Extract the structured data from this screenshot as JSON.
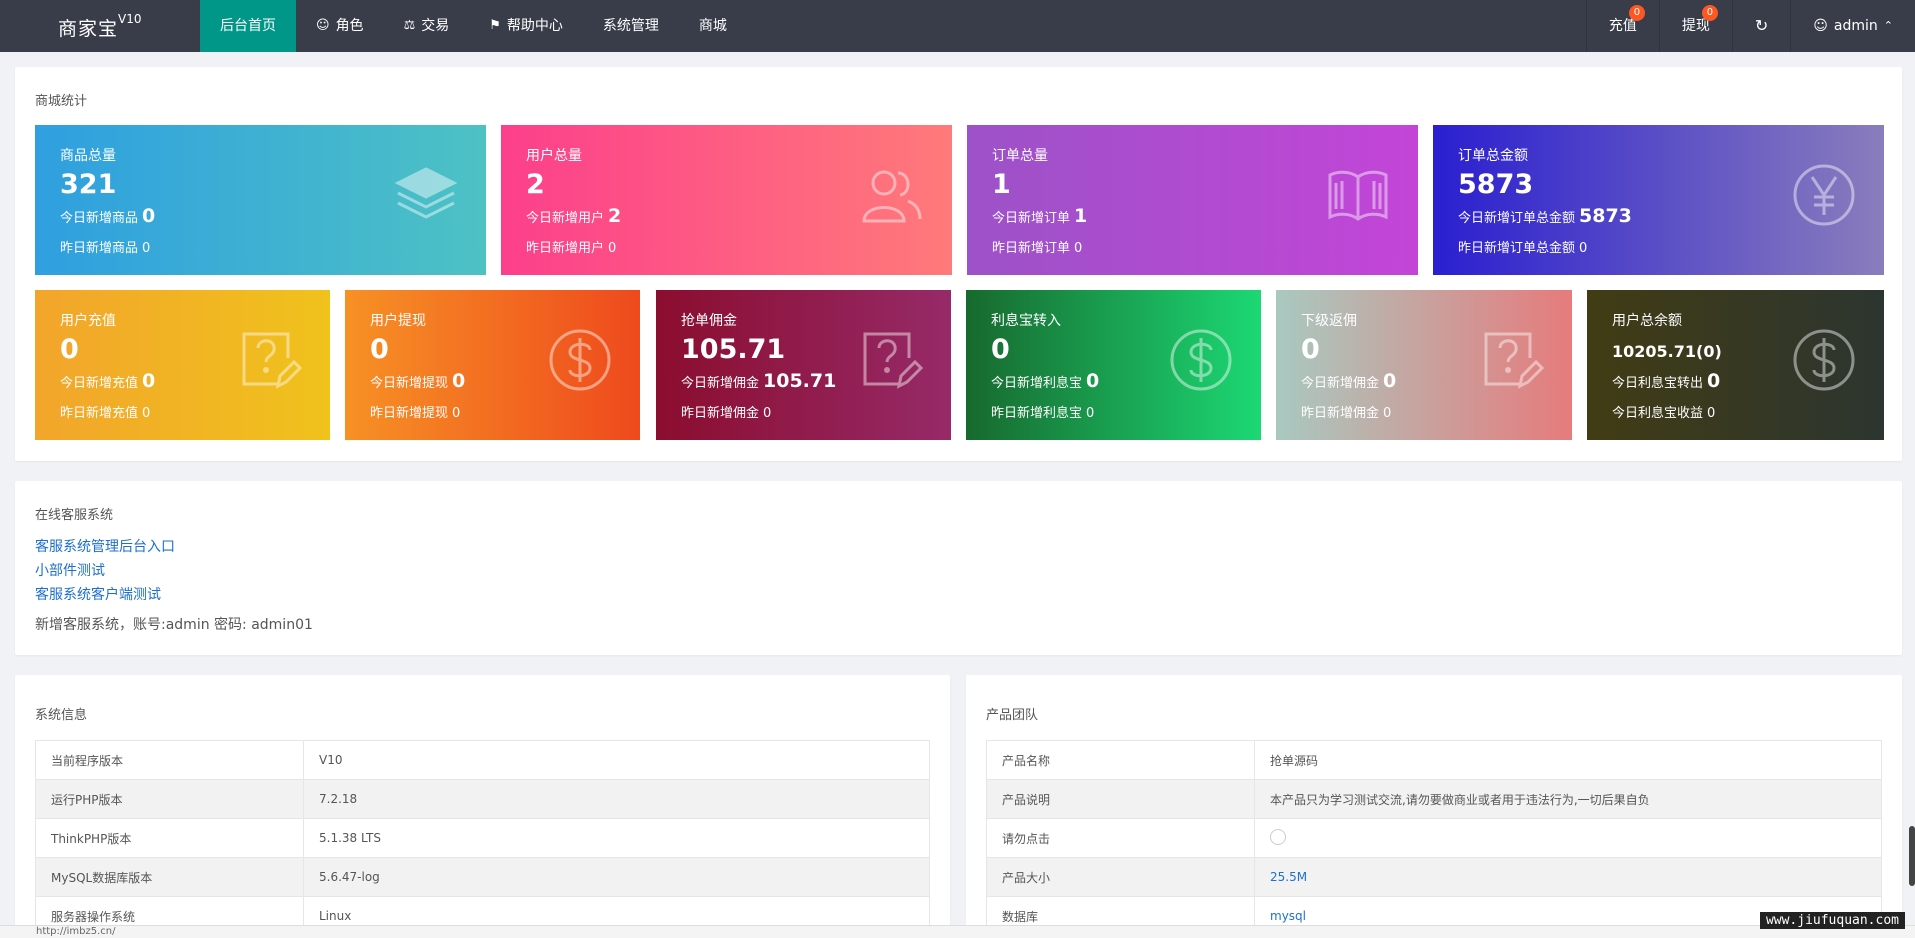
{
  "header": {
    "brand": "商家宝",
    "version": "V10",
    "nav": [
      {
        "label": "后台首页",
        "icon": ""
      },
      {
        "label": "角色",
        "icon": "user-icon"
      },
      {
        "label": "交易",
        "icon": "scale-icon"
      },
      {
        "label": "帮助中心",
        "icon": "flag-icon"
      },
      {
        "label": "系统管理",
        "icon": ""
      },
      {
        "label": "商城",
        "icon": ""
      }
    ],
    "recharge": {
      "label": "充值",
      "badge": "0"
    },
    "withdraw": {
      "label": "提现",
      "badge": "0"
    },
    "user": "admin"
  },
  "stats": {
    "title": "商城统计",
    "row1": [
      {
        "label": "商品总量",
        "total": "321",
        "today_label": "今日新增商品",
        "today": "0",
        "yesterday_label": "昨日新增商品",
        "yesterday": "0",
        "icon": "layers-icon"
      },
      {
        "label": "用户总量",
        "total": "2",
        "today_label": "今日新增用户",
        "today": "2",
        "yesterday_label": "昨日新增用户",
        "yesterday": "0",
        "icon": "users-icon"
      },
      {
        "label": "订单总量",
        "total": "1",
        "today_label": "今日新增订单",
        "today": "1",
        "yesterday_label": "昨日新增订单",
        "yesterday": "0",
        "icon": "book-icon"
      },
      {
        "label": "订单总金额",
        "total": "5873",
        "today_label": "今日新增订单总金额",
        "today": "5873",
        "yesterday_label": "昨日新增订单总金额",
        "yesterday": "0",
        "icon": "yen-icon"
      }
    ],
    "row2": [
      {
        "label": "用户充值",
        "total": "0",
        "today_label": "今日新增充值",
        "today": "0",
        "yesterday_label": "昨日新增充值",
        "yesterday": "0",
        "icon": "question-edit-icon"
      },
      {
        "label": "用户提现",
        "total": "0",
        "today_label": "今日新增提现",
        "today": "0",
        "yesterday_label": "昨日新增提现",
        "yesterday": "0",
        "icon": "dollar-icon"
      },
      {
        "label": "抢单佣金",
        "total": "105.71",
        "today_label": "今日新增佣金",
        "today": "105.71",
        "yesterday_label": "昨日新增佣金",
        "yesterday": "0",
        "icon": "question-edit-icon"
      },
      {
        "label": "利息宝转入",
        "total": "0",
        "today_label": "今日新增利息宝",
        "today": "0",
        "yesterday_label": "昨日新增利息宝",
        "yesterday": "0",
        "icon": "dollar-icon"
      },
      {
        "label": "下级返佣",
        "total": "0",
        "today_label": "今日新增佣金",
        "today": "0",
        "yesterday_label": "昨日新增佣金",
        "yesterday": "0",
        "icon": "question-edit-icon"
      },
      {
        "label": "用户总余额",
        "total": "10205.71(0)",
        "today_label": "今日利息宝转出",
        "today": "0",
        "yesterday_label": "今日利息宝收益",
        "yesterday": "0",
        "icon": "dollar-icon"
      }
    ]
  },
  "service": {
    "title": "在线客服系统",
    "links": [
      "客服系统管理后台入口",
      "小部件测试",
      "客服系统客户端测试"
    ],
    "note": "新增客服系统，账号:admin 密码: admin01"
  },
  "sysinfo": {
    "title": "系统信息",
    "rows": [
      [
        "当前程序版本",
        "V10"
      ],
      [
        "运行PHP版本",
        "7.2.18"
      ],
      [
        "ThinkPHP版本",
        "5.1.38 LTS"
      ],
      [
        "MySQL数据库版本",
        "5.6.47-log"
      ],
      [
        "服务器操作系统",
        "Linux"
      ]
    ]
  },
  "team": {
    "title": "产品团队",
    "rows": [
      [
        "产品名称",
        "抢单源码"
      ],
      [
        "产品说明",
        "本产品只为学习测试交流,请勿要做商业或者用于违法行为,一切后果自负"
      ],
      [
        "请勿点击",
        ""
      ],
      [
        "产品大小",
        "25.5M"
      ],
      [
        "数据库",
        "mysql"
      ]
    ]
  },
  "statusbar": {
    "url": "http://imbz5.cn/"
  },
  "watermark": "www.jiufuquan.com"
}
